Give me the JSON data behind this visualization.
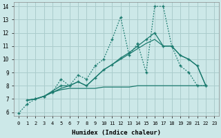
{
  "xlabel": "Humidex (Indice chaleur)",
  "xlim": [
    -0.5,
    23.5
  ],
  "ylim": [
    5.7,
    14.3
  ],
  "yticks": [
    6,
    7,
    8,
    9,
    10,
    11,
    12,
    13,
    14
  ],
  "xticks": [
    0,
    1,
    2,
    3,
    4,
    5,
    6,
    7,
    8,
    9,
    10,
    11,
    12,
    13,
    14,
    15,
    16,
    17,
    18,
    19,
    20,
    21,
    22,
    23
  ],
  "bg_color": "#cce8e8",
  "grid_color": "#aacccc",
  "line_color": "#1a7a6e",
  "lines": [
    {
      "x": [
        0,
        1,
        2,
        3,
        4,
        5,
        6,
        7,
        8,
        9,
        10,
        11,
        12,
        13,
        14,
        15,
        16,
        17,
        18,
        19,
        20,
        21,
        22
      ],
      "y": [
        5.9,
        6.6,
        7.0,
        7.2,
        7.5,
        8.5,
        8.0,
        8.8,
        8.5,
        9.5,
        10.0,
        11.5,
        13.2,
        10.3,
        11.2,
        9.0,
        14.0,
        14.0,
        11.0,
        9.5,
        9.0,
        8.0,
        8.0
      ],
      "style": "dotted",
      "marker": "+"
    },
    {
      "x": [
        1,
        2,
        3,
        4,
        5,
        6,
        7,
        8,
        9,
        10,
        11,
        12,
        13,
        14,
        15,
        16,
        17,
        18,
        19,
        20,
        21,
        22
      ],
      "y": [
        6.9,
        7.0,
        7.2,
        7.5,
        7.7,
        7.8,
        7.8,
        7.8,
        7.8,
        7.9,
        7.9,
        7.9,
        7.9,
        8.0,
        8.0,
        8.0,
        8.0,
        8.0,
        8.0,
        8.0,
        8.0,
        8.0
      ],
      "style": "solid",
      "marker": null
    },
    {
      "x": [
        1,
        2,
        3,
        4,
        5,
        6,
        7,
        8,
        9,
        10,
        11,
        12,
        13,
        14,
        15,
        16,
        17,
        18,
        19,
        20,
        21,
        22
      ],
      "y": [
        6.9,
        7.0,
        7.2,
        7.6,
        8.0,
        8.0,
        8.3,
        8.0,
        8.6,
        9.2,
        9.6,
        10.1,
        10.5,
        11.0,
        11.5,
        12.0,
        11.0,
        11.0,
        10.3,
        10.0,
        9.5,
        8.0
      ],
      "style": "solid",
      "marker": "+"
    },
    {
      "x": [
        1,
        2,
        3,
        4,
        5,
        6,
        7,
        8,
        9,
        10,
        11,
        12,
        13,
        14,
        15,
        16,
        17,
        18,
        19,
        20,
        21,
        22
      ],
      "y": [
        6.9,
        7.0,
        7.2,
        7.5,
        7.8,
        8.0,
        8.3,
        8.0,
        8.6,
        9.2,
        9.6,
        10.0,
        10.4,
        10.8,
        11.2,
        11.5,
        11.0,
        11.0,
        10.3,
        10.0,
        9.5,
        8.0
      ],
      "style": "solid",
      "marker": null
    }
  ]
}
